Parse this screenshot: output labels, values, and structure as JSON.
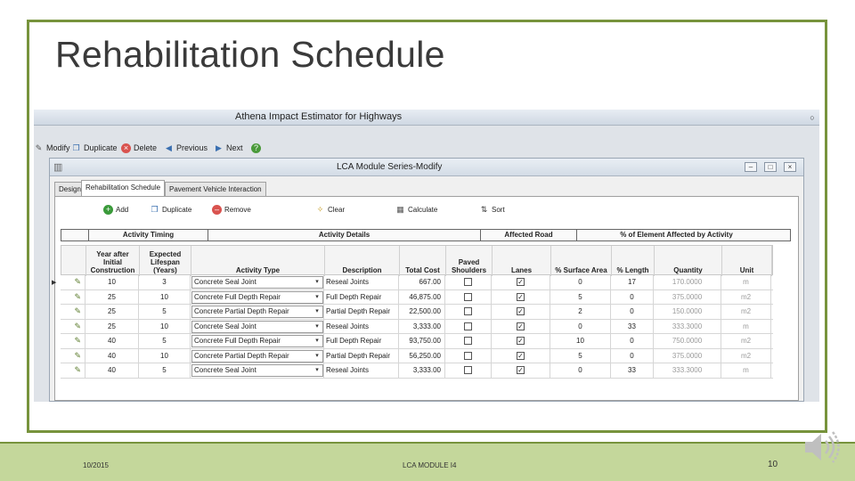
{
  "slide": {
    "title": "Rehabilitation Schedule",
    "footer_date": "10/2015",
    "footer_center": "LCA MODULE I4",
    "page_number": "10"
  },
  "app": {
    "title": "Athena Impact Estimator for Highways",
    "toolbar": [
      {
        "label": "Modify",
        "icon": "pencil-icon"
      },
      {
        "label": "Duplicate",
        "icon": "duplicate-icon"
      },
      {
        "label": "Delete",
        "icon": "delete-icon"
      },
      {
        "label": "Previous",
        "icon": "previous-icon"
      },
      {
        "label": "Next",
        "icon": "next-icon"
      },
      {
        "label": "",
        "icon": "help-icon"
      }
    ]
  },
  "child": {
    "title": "LCA Module Series-Modify",
    "tabs": [
      "Design",
      "Rehabilitation Schedule",
      "Pavement Vehicle Interaction"
    ],
    "active_tab": "Rehabilitation Schedule",
    "actions": [
      {
        "label": "Add",
        "icon": "add-icon"
      },
      {
        "label": "Duplicate",
        "icon": "duplicate-icon"
      },
      {
        "label": "Remove",
        "icon": "remove-icon"
      },
      {
        "label": "Clear",
        "icon": "broom-icon"
      },
      {
        "label": "Calculate",
        "icon": "calculator-icon"
      },
      {
        "label": "Sort",
        "icon": "sort-icon"
      }
    ],
    "band_headers": [
      "Activity Timing",
      "Activity Details",
      "Affected Road",
      "% of Element Affected by Activity"
    ],
    "columns": [
      "Year after Initial Construction",
      "Expected Lifespan (Years)",
      "Activity Type",
      "Description",
      "Total Cost",
      "Paved Shoulders",
      "Lanes",
      "% Surface Area",
      "% Length",
      "Quantity",
      "Unit"
    ],
    "rows": [
      {
        "year": "10",
        "lifespan": "3",
        "type": "Concrete Seal Joint",
        "desc": "Reseal Joints",
        "cost": "667.00",
        "shoulders": false,
        "lanes": true,
        "surface": "0",
        "length": "17",
        "qty": "170.0000",
        "unit": "m"
      },
      {
        "year": "25",
        "lifespan": "10",
        "type": "Concrete Full Depth Repair",
        "desc": "Full Depth Repair",
        "cost": "46,875.00",
        "shoulders": false,
        "lanes": true,
        "surface": "5",
        "length": "0",
        "qty": "375.0000",
        "unit": "m2"
      },
      {
        "year": "25",
        "lifespan": "5",
        "type": "Concrete Partial Depth Repair",
        "desc": "Partial Depth Repair",
        "cost": "22,500.00",
        "shoulders": false,
        "lanes": true,
        "surface": "2",
        "length": "0",
        "qty": "150.0000",
        "unit": "m2"
      },
      {
        "year": "25",
        "lifespan": "10",
        "type": "Concrete Seal Joint",
        "desc": "Reseal Joints",
        "cost": "3,333.00",
        "shoulders": false,
        "lanes": true,
        "surface": "0",
        "length": "33",
        "qty": "333.3000",
        "unit": "m"
      },
      {
        "year": "40",
        "lifespan": "5",
        "type": "Concrete Full Depth Repair",
        "desc": "Full Depth Repair",
        "cost": "93,750.00",
        "shoulders": false,
        "lanes": true,
        "surface": "10",
        "length": "0",
        "qty": "750.0000",
        "unit": "m2"
      },
      {
        "year": "40",
        "lifespan": "10",
        "type": "Concrete Partial Depth Repair",
        "desc": "Partial Depth Repair",
        "cost": "56,250.00",
        "shoulders": false,
        "lanes": true,
        "surface": "5",
        "length": "0",
        "qty": "375.0000",
        "unit": "m2"
      },
      {
        "year": "40",
        "lifespan": "5",
        "type": "Concrete Seal Joint",
        "desc": "Reseal Joints",
        "cost": "3,333.00",
        "shoulders": false,
        "lanes": true,
        "surface": "0",
        "length": "33",
        "qty": "333.3000",
        "unit": "m"
      }
    ]
  },
  "colors": {
    "frame": "#77933c",
    "footer_band": "#c4d79b"
  }
}
